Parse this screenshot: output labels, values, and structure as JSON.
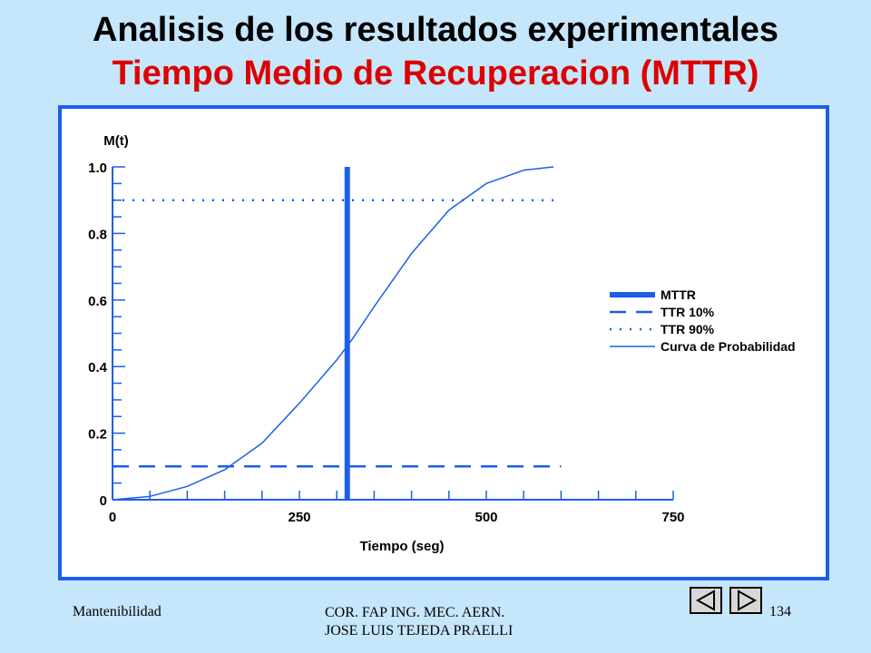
{
  "slide": {
    "title": "Analisis de los resultados experimentales",
    "subtitle": "Tiempo Medio de Recuperacion (MTTR)"
  },
  "footer": {
    "left": "Mantenibilidad",
    "center_line1": "COR. FAP ING. MEC. AERN.",
    "center_line2": "JOSE  LUIS TEJEDA PRAELLI",
    "page": "134"
  },
  "nav": {
    "prev_icon": "triangle-left-icon",
    "next_icon": "triangle-right-icon"
  },
  "colors": {
    "background": "#c6e6fb",
    "title": "#000000",
    "subtitle": "#dd0000",
    "frame": "#1c5ee8",
    "series": "#1c5ee8"
  },
  "chart_data": {
    "type": "line",
    "xlabel": "Tiempo (seg)",
    "ylabel": "M(t)",
    "xlim": [
      0,
      750
    ],
    "ylim": [
      0,
      1.0
    ],
    "x_ticks": [
      0,
      250,
      500,
      750
    ],
    "x_tick_labels": [
      "0",
      "250",
      "500",
      "750"
    ],
    "y_ticks": [
      0,
      0.2,
      0.4,
      0.6,
      0.8,
      1.0
    ],
    "y_tick_labels": [
      "0",
      "0.2",
      "0.4",
      "0.6",
      "0.8",
      "1.0"
    ],
    "grid": false,
    "legend_position": "right",
    "series": [
      {
        "name": "Curva de Probabilidad",
        "style": "thin-line",
        "x": [
          0,
          50,
          100,
          150,
          200,
          250,
          300,
          320,
          350,
          400,
          450,
          500,
          550,
          590
        ],
        "y": [
          0.0,
          0.01,
          0.04,
          0.09,
          0.17,
          0.29,
          0.42,
          0.48,
          0.58,
          0.74,
          0.87,
          0.95,
          0.99,
          1.0
        ]
      },
      {
        "name": "MTTR",
        "style": "thick-line",
        "x": [
          314,
          314
        ],
        "y": [
          0,
          1.0
        ]
      },
      {
        "name": "TTR 10%",
        "style": "dashed",
        "x": [
          0,
          600
        ],
        "y": [
          0.1,
          0.1
        ]
      },
      {
        "name": "TTR 90%",
        "style": "dotted",
        "x": [
          0,
          600
        ],
        "y": [
          0.9,
          0.9
        ]
      }
    ]
  }
}
